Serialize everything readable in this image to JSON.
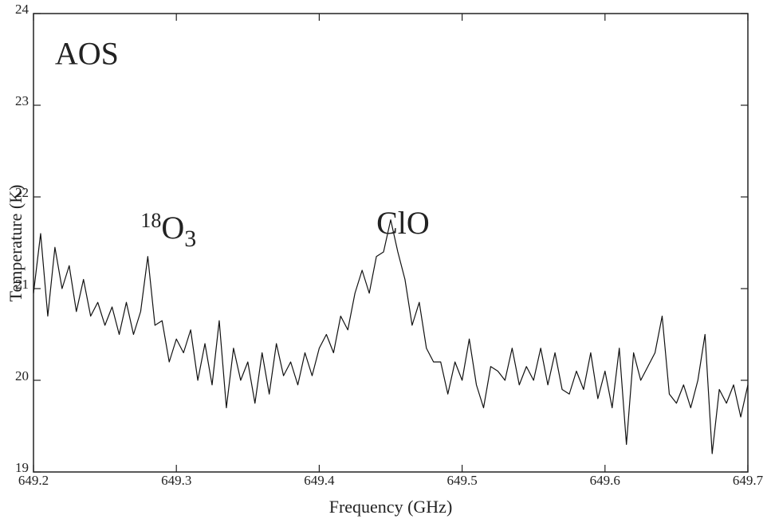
{
  "chart_data": {
    "type": "line",
    "xlabel": "Frequency (GHz)",
    "ylabel": "Temperature (K)",
    "annotations": [
      {
        "text": "AOS",
        "x": 649.215,
        "y": 23.45
      },
      {
        "text": "ClO",
        "x": 649.44,
        "y": 21.6
      },
      {
        "superscript": "18",
        "text": "O",
        "subscript": "3",
        "x": 649.275,
        "y": 21.55
      }
    ],
    "x": [
      649.2,
      649.205,
      649.21,
      649.215,
      649.22,
      649.225,
      649.23,
      649.235,
      649.24,
      649.245,
      649.25,
      649.255,
      649.26,
      649.265,
      649.27,
      649.275,
      649.28,
      649.285,
      649.29,
      649.295,
      649.3,
      649.305,
      649.31,
      649.315,
      649.32,
      649.325,
      649.33,
      649.335,
      649.34,
      649.345,
      649.35,
      649.355,
      649.36,
      649.365,
      649.37,
      649.375,
      649.38,
      649.385,
      649.39,
      649.395,
      649.4,
      649.405,
      649.41,
      649.415,
      649.42,
      649.425,
      649.43,
      649.435,
      649.44,
      649.445,
      649.45,
      649.455,
      649.46,
      649.465,
      649.47,
      649.475,
      649.48,
      649.485,
      649.49,
      649.495,
      649.5,
      649.505,
      649.51,
      649.515,
      649.52,
      649.525,
      649.53,
      649.535,
      649.54,
      649.545,
      649.55,
      649.555,
      649.56,
      649.565,
      649.57,
      649.575,
      649.58,
      649.585,
      649.59,
      649.595,
      649.6,
      649.605,
      649.61,
      649.615,
      649.62,
      649.625,
      649.63,
      649.635,
      649.64,
      649.645,
      649.65,
      649.655,
      649.66,
      649.665,
      649.67,
      649.675,
      649.68,
      649.685,
      649.69,
      649.695,
      649.7
    ],
    "series": [
      {
        "color": "#111111",
        "values": [
          20.95,
          21.6,
          20.7,
          21.45,
          21.0,
          21.25,
          20.75,
          21.1,
          20.7,
          20.85,
          20.6,
          20.8,
          20.5,
          20.85,
          20.5,
          20.75,
          21.35,
          20.6,
          20.65,
          20.2,
          20.45,
          20.3,
          20.55,
          20.0,
          20.4,
          19.95,
          20.65,
          19.7,
          20.35,
          20.0,
          20.2,
          19.75,
          20.3,
          19.85,
          20.4,
          20.05,
          20.2,
          19.95,
          20.3,
          20.05,
          20.35,
          20.5,
          20.3,
          20.7,
          20.55,
          20.95,
          21.2,
          20.95,
          21.35,
          21.4,
          21.75,
          21.4,
          21.1,
          20.6,
          20.85,
          20.35,
          20.2,
          20.2,
          19.85,
          20.2,
          20.0,
          20.45,
          19.95,
          19.7,
          20.15,
          20.1,
          20.0,
          20.35,
          19.95,
          20.15,
          20.0,
          20.35,
          19.95,
          20.3,
          19.9,
          19.85,
          20.1,
          19.9,
          20.3,
          19.8,
          20.1,
          19.7,
          20.35,
          19.3,
          20.3,
          20.0,
          20.15,
          20.3,
          20.7,
          19.85,
          19.75,
          19.95,
          19.7,
          20.0,
          20.5,
          19.2,
          19.9,
          19.75,
          19.95,
          19.6,
          19.95
        ]
      }
    ],
    "xlim": [
      649.2,
      649.7
    ],
    "ylim": [
      19,
      24
    ],
    "xticks": [
      649.2,
      649.3,
      649.4,
      649.5,
      649.6,
      649.7
    ],
    "yticks": [
      19,
      20,
      21,
      22,
      23,
      24
    ]
  }
}
